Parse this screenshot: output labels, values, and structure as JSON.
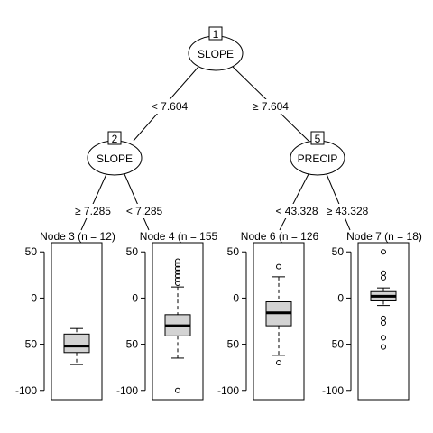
{
  "tree": {
    "inner_nodes": [
      {
        "id": "1",
        "label": "SLOPE"
      },
      {
        "id": "2",
        "label": "SLOPE"
      },
      {
        "id": "5",
        "label": "PRECIP"
      }
    ],
    "edges": [
      {
        "label": "< 7.604"
      },
      {
        "label": "≥ 7.604"
      },
      {
        "label": "≥ 7.285"
      },
      {
        "label": "< 7.285"
      },
      {
        "label": "< 43.328"
      },
      {
        "label": "≥ 43.328"
      }
    ]
  },
  "chart_data": {
    "type": "boxplot",
    "ylim": [
      -110,
      60
    ],
    "y_ticks": [
      "50",
      "0",
      "-50",
      "-100"
    ],
    "y_tick_values": [
      50,
      0,
      -50,
      -100
    ],
    "panels": [
      {
        "title": "Node 3 (n = 12)",
        "node": 3,
        "n": 12,
        "whisker_low": -72,
        "q1": -59,
        "median": -52,
        "q3": -39,
        "whisker_high": -33,
        "outliers": []
      },
      {
        "title": "Node 4 (n = 155",
        "node": 4,
        "n": 155,
        "whisker_low": -65,
        "q1": -41,
        "median": -30,
        "q3": -18,
        "whisker_high": 12,
        "outliers": [
          40,
          36,
          32,
          28,
          24,
          20,
          16,
          -100
        ]
      },
      {
        "title": "Node 6 (n = 126",
        "node": 6,
        "n": 126,
        "whisker_low": -62,
        "q1": -30,
        "median": -16,
        "q3": -4,
        "whisker_high": 23,
        "outliers": [
          34,
          -70
        ]
      },
      {
        "title": "Node 7 (n = 18)",
        "node": 7,
        "n": 18,
        "whisker_low": -8,
        "q1": -3,
        "median": 2,
        "q3": 7,
        "whisker_high": 11,
        "outliers": [
          50,
          27,
          22,
          -22,
          -27,
          -43,
          -53
        ]
      }
    ]
  }
}
